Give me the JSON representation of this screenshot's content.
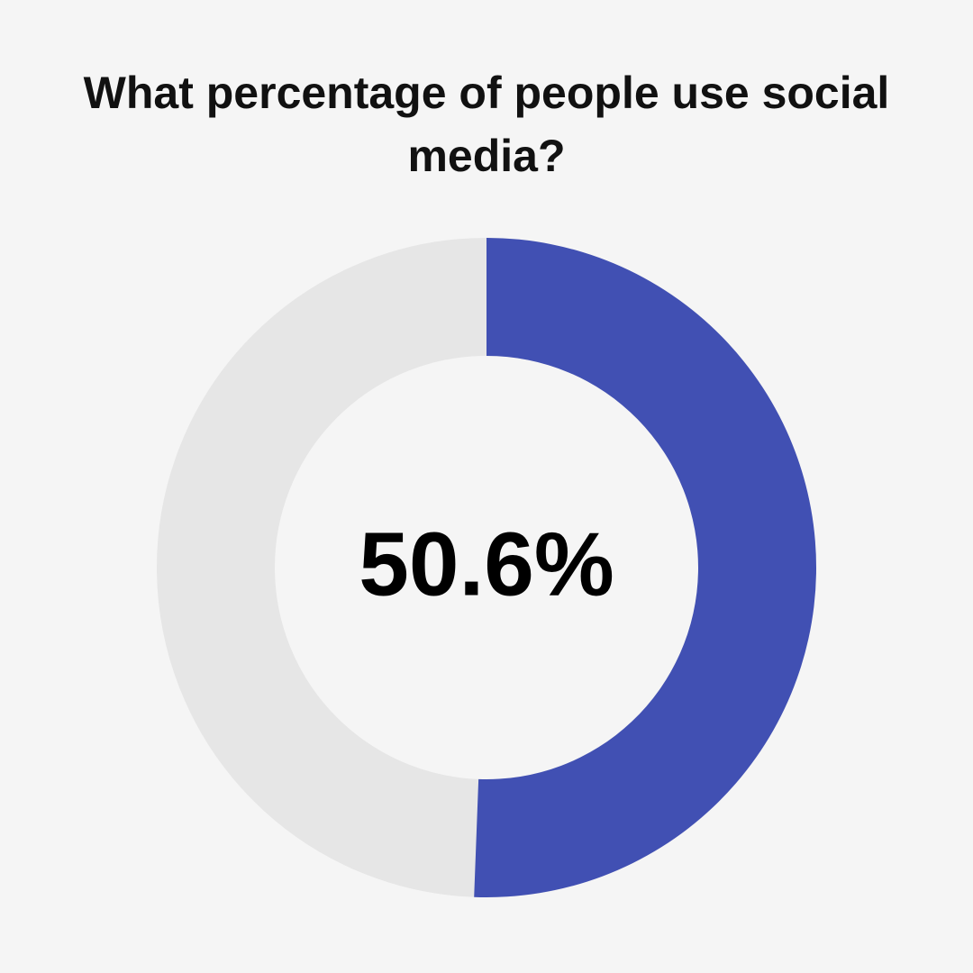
{
  "chart_data": {
    "type": "donut",
    "title": "What percentage of people use social media?",
    "values": [
      50.6
    ],
    "value_labels": [
      "50.6%"
    ],
    "colors": [
      "#4150b3"
    ],
    "track_color": "#e6e6e6",
    "ylim": [
      0,
      100
    ]
  }
}
